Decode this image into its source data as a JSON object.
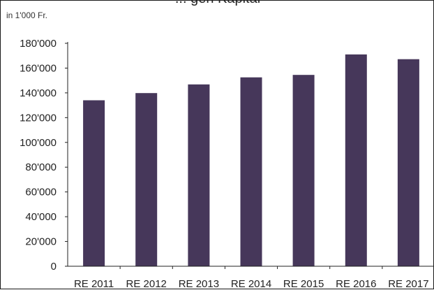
{
  "chart_data": {
    "type": "bar",
    "title": "... gen Kapital",
    "unit_label": "in 1'000 Fr.",
    "categories": [
      "RE 2011",
      "RE 2012",
      "RE 2013",
      "RE 2014",
      "RE 2015",
      "RE 2016",
      "RE 2017"
    ],
    "values": [
      134000,
      139800,
      146800,
      152500,
      154500,
      171000,
      167200
    ],
    "ylim": [
      0,
      180000
    ],
    "y_ticks": [
      "0",
      "20'000",
      "40'000",
      "60'000",
      "80'000",
      "100'000",
      "120'000",
      "140'000",
      "160'000",
      "180'000"
    ],
    "y_tick_values": [
      0,
      20000,
      40000,
      60000,
      80000,
      100000,
      120000,
      140000,
      160000,
      180000
    ],
    "grid": false,
    "legend": "none",
    "bar_color": "#46375a"
  }
}
